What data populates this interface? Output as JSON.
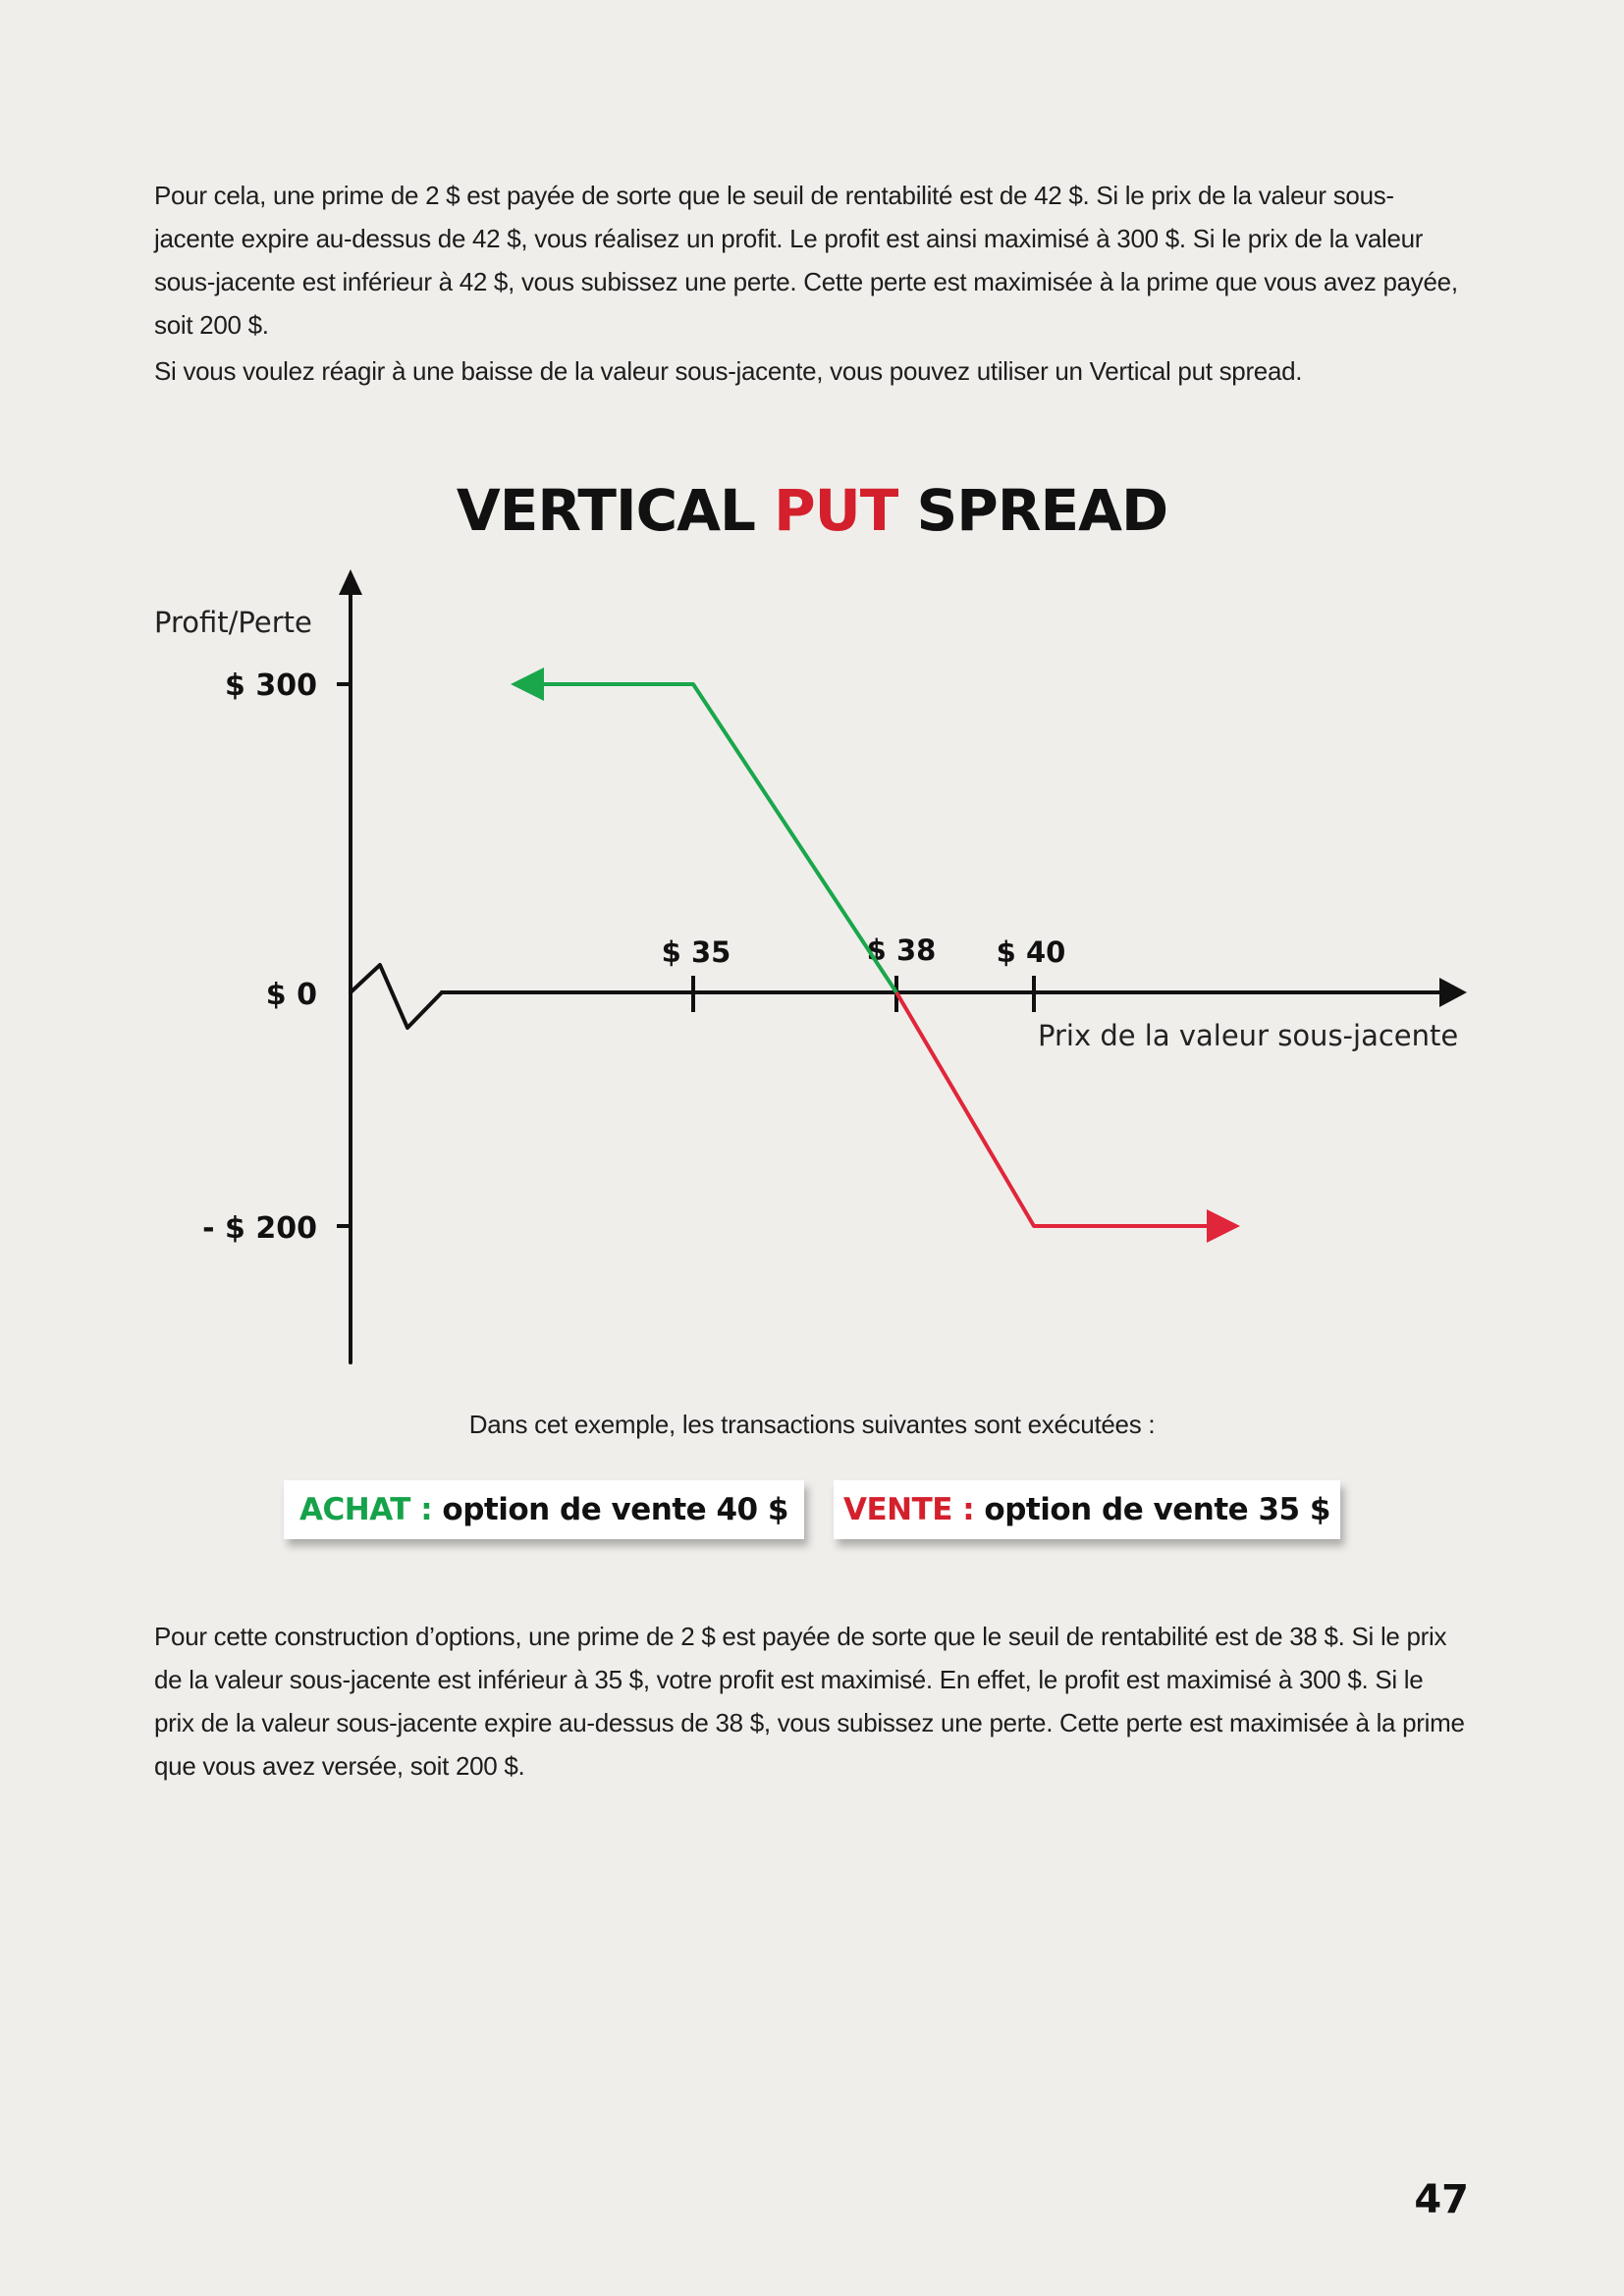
{
  "paragraphs": {
    "p1": "Pour cela, une prime de 2 $ est payée de sorte que le seuil de rentabilité est de 42 $. Si le prix de la valeur sous-jacente expire au-dessus de 42 $, vous réalisez un profit. Le profit est ainsi maximisé à 300 $. Si le prix de la valeur sous-jacente est inférieur à 42 $, vous subissez une perte. Cette perte est maximisée à la prime que vous avez payée, soit 200 $.",
    "p2": "Si vous voulez réagir à une baisse de la valeur sous-jacente, vous pouvez utiliser un Vertical put spread.",
    "p3": "Pour cette construction d’options, une prime de 2 $ est payée de sorte que le seuil de rentabilité est de 38 $. Si le prix de la valeur sous-jacente est inférieur à 35 $, votre profit est maximisé. En effet, le profit est maximisé à 300 $. Si le prix de la valeur sous-jacente expire au-dessus de 38 $, vous subissez une perte. Cette perte est maximisée à la prime que vous avez versée, soit 200 $."
  },
  "title": {
    "part1": "VERTICAL ",
    "part2": "PUT",
    "part3": " SPREAD"
  },
  "chart_data": {
    "type": "line",
    "ylabel": "Profit/Perte",
    "xlabel": "Prix de la valeur sous-jacente",
    "y_ticks": [
      "$ 300",
      "$ 0",
      "- $ 200"
    ],
    "x_ticks": [
      "$ 35",
      "$ 38",
      "$ 40"
    ],
    "profit_segment": {
      "color": "#1aa64b",
      "x": [
        35,
        38
      ],
      "y": [
        300,
        0
      ]
    },
    "loss_segment": {
      "color": "#e0263a",
      "x": [
        38,
        40
      ],
      "y": [
        0,
        -200
      ]
    },
    "max_profit": 300,
    "max_loss": -200,
    "break_even": 38
  },
  "caption": "Dans cet exemple, les transactions suivantes sont exécutées :",
  "transactions": {
    "buy_label": "ACHAT :",
    "buy_text": " option de vente 40 $",
    "sell_label": "VENTE :",
    "sell_text": " option de vente 35 $"
  },
  "colors": {
    "accent_red": "#d4202c",
    "accent_green": "#16a24a"
  },
  "page_number": "47"
}
